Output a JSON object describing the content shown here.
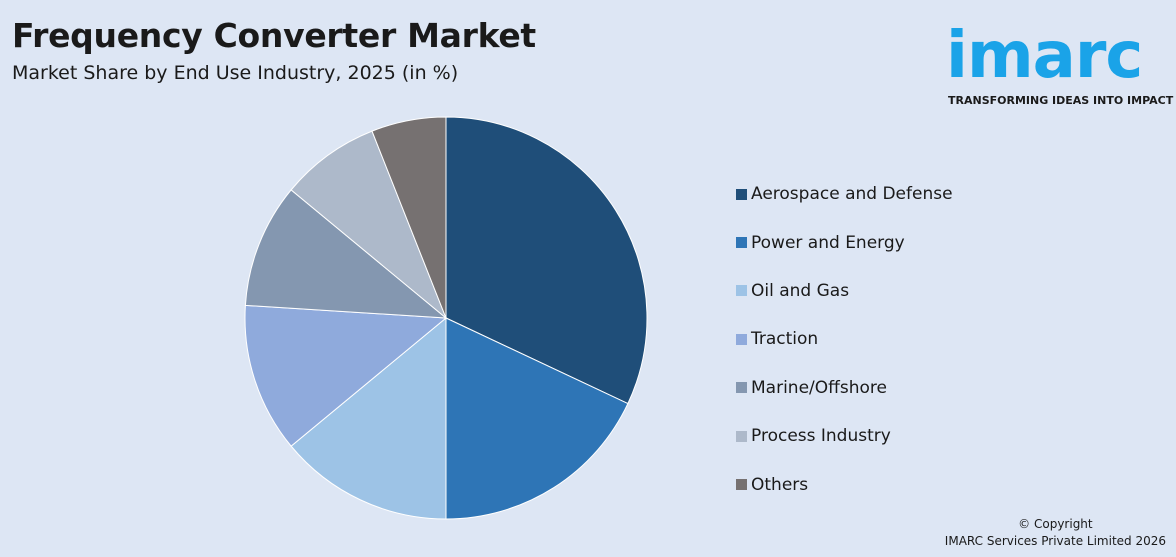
{
  "header": {
    "title": "Frequency Converter Market",
    "subtitle": "Market Share by End Use Industry, 2025 (in %)"
  },
  "logo": {
    "word": "imarc",
    "tagline": "TRANSFORMING IDEAS INTO IMPACT",
    "color": "#1aa3e8"
  },
  "footer": {
    "copyright_line1": "© Copyright",
    "copyright_line2": "IMARC Services Private Limited 2026"
  },
  "chart_data": {
    "type": "pie",
    "title": "Frequency Converter Market",
    "subtitle": "Market Share by End Use Industry, 2025 (in %)",
    "legend_position": "right",
    "categories": [
      "Aerospace and Defense",
      "Power and Energy",
      "Oil and Gas",
      "Traction",
      "Marine/Offshore",
      "Process Industry",
      "Others"
    ],
    "values": [
      32,
      18,
      14,
      12,
      10,
      8,
      6
    ],
    "colors": [
      "#1f4e79",
      "#2e75b6",
      "#9dc3e6",
      "#8faadc",
      "#8497b0",
      "#adb9ca",
      "#767171"
    ]
  }
}
